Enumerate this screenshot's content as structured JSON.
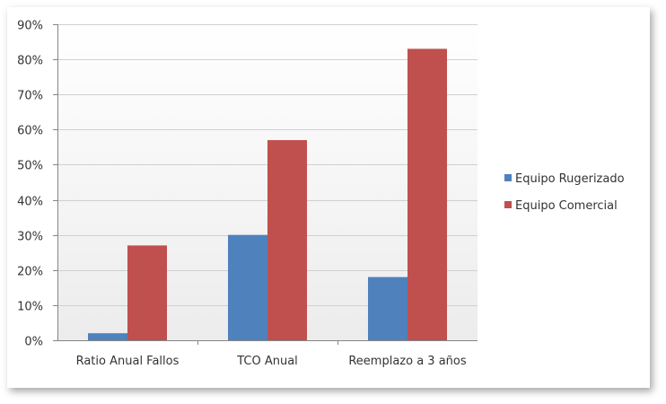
{
  "chart_data": {
    "type": "bar",
    "categories": [
      "Ratio Anual Fallos",
      "TCO Anual",
      "Reemplazo a 3 años"
    ],
    "series": [
      {
        "name": "Equipo Rugerizado",
        "values": [
          2,
          30,
          18
        ],
        "color": "#4F81BD"
      },
      {
        "name": "Equipo Comercial",
        "values": [
          27,
          57,
          83
        ],
        "color": "#C0504D"
      }
    ],
    "ylim": [
      0,
      90
    ],
    "yticks": [
      "0%",
      "10%",
      "20%",
      "30%",
      "40%",
      "50%",
      "60%",
      "70%",
      "80%",
      "90%"
    ],
    "grid": true,
    "legend_position": "right"
  }
}
